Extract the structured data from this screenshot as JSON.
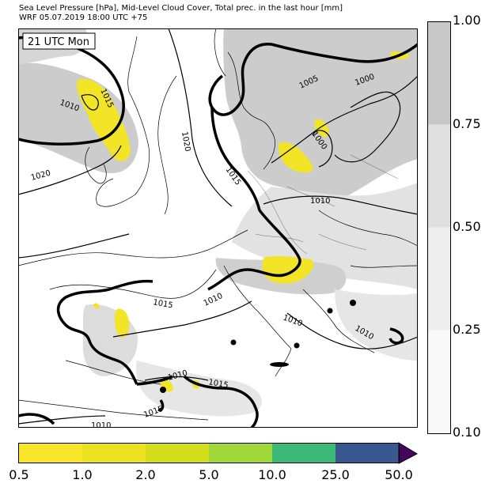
{
  "title": {
    "line1": "Sea Level Pressure [hPa], Mid-Level Cloud Cover, Total prec. in the last hour [mm]",
    "line2": "WRF 05.07.2019 18:00 UTC +75"
  },
  "map": {
    "time_label": "21 UTC Mon",
    "isobar_labels": [
      "1010",
      "1015",
      "1020",
      "1020",
      "1015",
      "1005",
      "1000",
      "1000",
      "1010",
      "1015",
      "1010",
      "1010",
      "1010",
      "1010",
      "1015",
      "1015",
      "1010"
    ]
  },
  "cloud_colorbar": {
    "ticks": [
      "1.00",
      "0.75",
      "0.50",
      "0.25",
      "0.10"
    ],
    "colors": [
      "#c8c8c8",
      "#e0e0e0",
      "#eeeeee",
      "#f8f8f8"
    ]
  },
  "precip_colorbar": {
    "ticks": [
      "0.5",
      "1.0",
      "2.0",
      "5.0",
      "10.0",
      "25.0",
      "50.0"
    ],
    "colors": [
      "#f9e527",
      "#ebe21f",
      "#d4de1b",
      "#a0d838",
      "#3cb878",
      "#3a5890",
      "#44055a"
    ]
  }
}
